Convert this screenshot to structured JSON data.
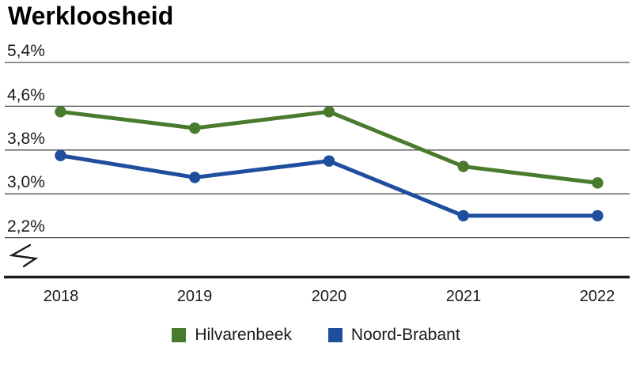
{
  "title": "Werkloosheid",
  "colors": {
    "hilvarenbeek_green": "#4a7a2e",
    "noord_brabant_blue": "#1f4e9e",
    "gridline": "#4d4d4d",
    "axis": "#1a1a1a",
    "text": "#1a1a1a"
  },
  "chart_data": {
    "type": "line",
    "categories": [
      "2018",
      "2019",
      "2020",
      "2021",
      "2022"
    ],
    "series": [
      {
        "name": "Hilvarenbeek",
        "color": "#4a7a2e",
        "values": [
          4.5,
          4.2,
          4.5,
          3.5,
          3.2
        ]
      },
      {
        "name": "Noord-Brabant",
        "color": "#1f4e9e",
        "values": [
          3.7,
          3.3,
          3.6,
          2.6,
          2.6
        ]
      }
    ],
    "title": "Werkloosheid",
    "xlabel": "",
    "ylabel": "",
    "unit": "%",
    "y_tick_labels": [
      "5,4%",
      "4,6%",
      "3,8%",
      "3,0%",
      "2,2%"
    ],
    "y_tick_values": [
      5.4,
      4.6,
      3.8,
      3.0,
      2.2
    ],
    "ylim": [
      2.2,
      5.4
    ],
    "grid": true,
    "axis_break": true,
    "legend_position": "bottom"
  },
  "legend": {
    "items": [
      {
        "label": "Hilvarenbeek",
        "color": "#4a7a2e"
      },
      {
        "label": "Noord-Brabant",
        "color": "#1f4e9e"
      }
    ]
  }
}
